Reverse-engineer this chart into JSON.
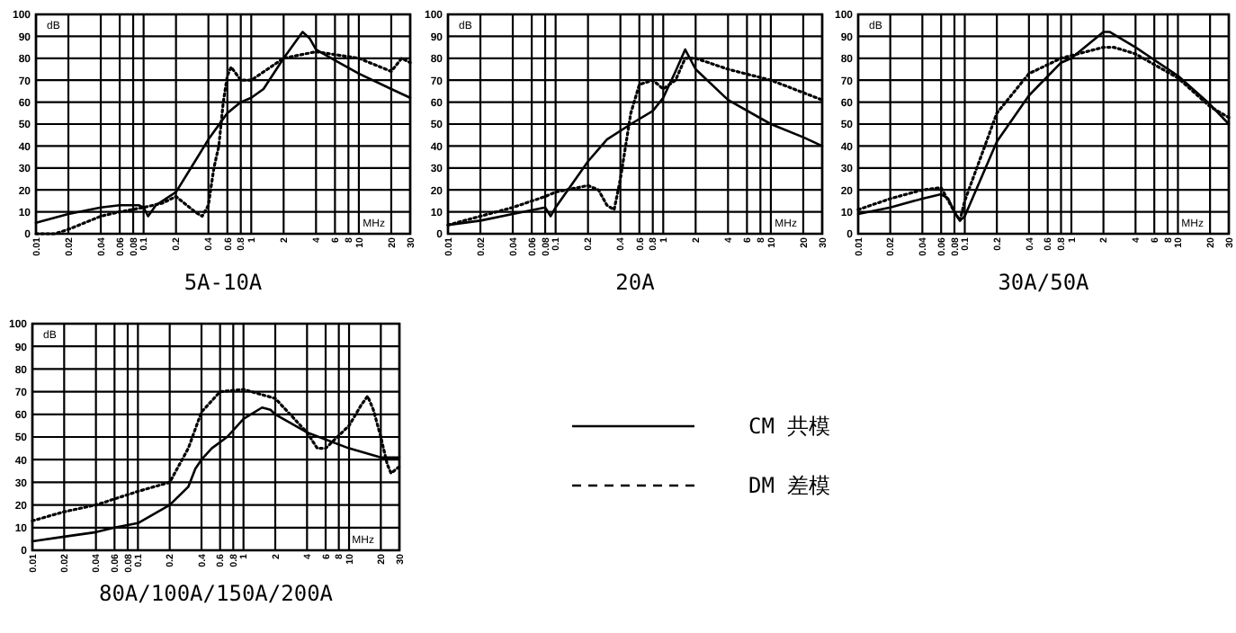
{
  "chart_data": [
    {
      "type": "line",
      "title": "5A-10A",
      "xlabel": "MHz",
      "ylabel": "dB",
      "log": "x",
      "grid": true,
      "legend": false,
      "xlim": [
        0.01,
        30
      ],
      "ylim": [
        0,
        100
      ],
      "xticks": [
        0.01,
        0.02,
        0.04,
        0.06,
        0.08,
        0.1,
        0.2,
        0.4,
        0.6,
        0.8,
        1,
        2,
        4,
        6,
        8,
        10,
        20,
        30
      ],
      "yticks": [
        0,
        10,
        20,
        30,
        40,
        50,
        60,
        70,
        80,
        90,
        100
      ],
      "series": [
        {
          "color": "#000000",
          "line_style": "solid",
          "x": [
            0.01,
            0.02,
            0.04,
            0.06,
            0.09,
            0.1,
            0.11,
            0.13,
            0.2,
            0.3,
            0.4,
            0.6,
            0.8,
            1,
            1.3,
            2,
            3,
            3.5,
            4,
            6,
            10,
            20,
            30
          ],
          "values": [
            5,
            9,
            12,
            13,
            13,
            12,
            8,
            13,
            19,
            33,
            43,
            55,
            60,
            62,
            66,
            80,
            92,
            89,
            84,
            79,
            73,
            66,
            62
          ]
        },
        {
          "color": "#000000",
          "line_style": "dotted",
          "x": [
            0.01,
            0.015,
            0.02,
            0.04,
            0.06,
            0.1,
            0.15,
            0.2,
            0.3,
            0.35,
            0.4,
            0.45,
            0.5,
            0.55,
            0.6,
            0.65,
            0.8,
            1,
            2,
            4,
            10,
            20,
            25,
            30
          ],
          "values": [
            0,
            0,
            2,
            8,
            10,
            12,
            14,
            17,
            10,
            8,
            13,
            30,
            40,
            60,
            72,
            76,
            70,
            70,
            80,
            83,
            80,
            74,
            80,
            78
          ]
        }
      ]
    },
    {
      "type": "line",
      "title": "20A",
      "xlabel": "MHz",
      "ylabel": "dB",
      "log": "x",
      "grid": true,
      "legend": false,
      "xlim": [
        0.01,
        30
      ],
      "ylim": [
        0,
        100
      ],
      "xticks": [
        0.01,
        0.02,
        0.04,
        0.06,
        0.08,
        0.1,
        0.2,
        0.4,
        0.6,
        0.8,
        1,
        2,
        4,
        6,
        8,
        10,
        20,
        30
      ],
      "yticks": [
        0,
        10,
        20,
        30,
        40,
        50,
        60,
        70,
        80,
        90,
        100
      ],
      "series": [
        {
          "color": "#000000",
          "line_style": "solid",
          "x": [
            0.01,
            0.02,
            0.04,
            0.08,
            0.09,
            0.1,
            0.2,
            0.3,
            0.5,
            0.8,
            1,
            1.3,
            1.6,
            2,
            4,
            10,
            20,
            30
          ],
          "values": [
            4,
            6,
            9,
            12,
            8,
            12,
            33,
            43,
            50,
            56,
            62,
            74,
            84,
            75,
            61,
            50,
            44,
            40
          ]
        },
        {
          "color": "#000000",
          "line_style": "dotted",
          "x": [
            0.01,
            0.02,
            0.04,
            0.08,
            0.1,
            0.2,
            0.25,
            0.3,
            0.35,
            0.4,
            0.5,
            0.6,
            0.8,
            1,
            1.3,
            1.6,
            2,
            4,
            10,
            30
          ],
          "values": [
            4,
            8,
            12,
            17,
            19,
            22,
            20,
            13,
            11,
            25,
            55,
            68,
            70,
            66,
            70,
            80,
            80,
            75,
            70,
            61
          ]
        }
      ]
    },
    {
      "type": "line",
      "title": "30A/50A",
      "xlabel": "MHz",
      "ylabel": "dB",
      "log": "x",
      "grid": true,
      "legend": false,
      "xlim": [
        0.01,
        30
      ],
      "ylim": [
        0,
        100
      ],
      "xticks": [
        0.01,
        0.02,
        0.04,
        0.06,
        0.08,
        0.1,
        0.2,
        0.4,
        0.6,
        0.8,
        1,
        2,
        4,
        6,
        8,
        10,
        20,
        30
      ],
      "yticks": [
        0,
        10,
        20,
        30,
        40,
        50,
        60,
        70,
        80,
        90,
        100
      ],
      "series": [
        {
          "color": "#000000",
          "line_style": "solid",
          "x": [
            0.01,
            0.02,
            0.04,
            0.06,
            0.07,
            0.08,
            0.09,
            0.1,
            0.2,
            0.4,
            0.8,
            1,
            2,
            2.3,
            4,
            10,
            20,
            30
          ],
          "values": [
            9,
            12,
            16,
            18,
            16,
            10,
            6,
            8,
            42,
            63,
            78,
            80,
            92,
            92,
            85,
            72,
            59,
            50
          ]
        },
        {
          "color": "#000000",
          "line_style": "dotted",
          "x": [
            0.01,
            0.02,
            0.04,
            0.06,
            0.08,
            0.09,
            0.1,
            0.2,
            0.4,
            0.8,
            2,
            2.5,
            4,
            10,
            20,
            30
          ],
          "values": [
            11,
            16,
            20,
            21,
            10,
            6,
            15,
            55,
            73,
            80,
            85,
            85,
            82,
            71,
            58,
            53
          ]
        }
      ]
    },
    {
      "type": "line",
      "title": "80A/100A/150A/200A",
      "xlabel": "MHz",
      "ylabel": "dB",
      "log": "x",
      "grid": true,
      "legend": "right",
      "xlim": [
        0.01,
        30
      ],
      "ylim": [
        0,
        100
      ],
      "xticks": [
        0.01,
        0.02,
        0.04,
        0.06,
        0.08,
        0.1,
        0.2,
        0.4,
        0.6,
        0.8,
        1,
        2,
        4,
        6,
        8,
        10,
        20,
        30
      ],
      "yticks": [
        0,
        10,
        20,
        30,
        40,
        50,
        60,
        70,
        80,
        90,
        100
      ],
      "series": [
        {
          "name": "CM 共模",
          "color": "#000000",
          "line_style": "solid",
          "x": [
            0.01,
            0.02,
            0.04,
            0.06,
            0.1,
            0.2,
            0.3,
            0.35,
            0.4,
            0.5,
            0.7,
            1,
            1.5,
            1.8,
            2,
            4,
            10,
            20,
            30
          ],
          "values": [
            4,
            6,
            8,
            10,
            12,
            20,
            28,
            36,
            40,
            45,
            50,
            58,
            63,
            62,
            60,
            52,
            45,
            41,
            41
          ]
        },
        {
          "name": "DM 差模",
          "color": "#000000",
          "line_style": "dotted",
          "x": [
            0.01,
            0.02,
            0.04,
            0.1,
            0.2,
            0.3,
            0.4,
            0.6,
            1,
            2,
            4,
            5,
            6,
            10,
            13,
            15,
            17,
            20,
            23,
            25,
            30
          ],
          "values": [
            13,
            17,
            20,
            26,
            30,
            45,
            61,
            70,
            71,
            67,
            52,
            45,
            45,
            55,
            64,
            68,
            62,
            50,
            38,
            34,
            37
          ]
        }
      ]
    }
  ]
}
